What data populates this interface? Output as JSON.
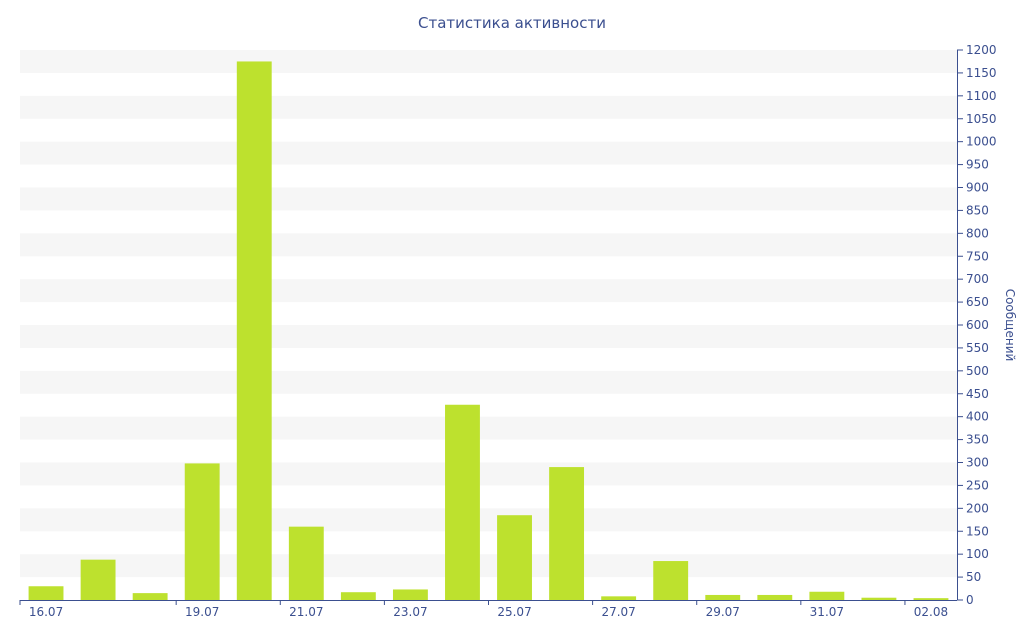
{
  "chart_data": {
    "type": "bar",
    "title": "Статистика активности",
    "ylabel": "Сообщений",
    "y_axis_side": "right",
    "ylim": [
      0,
      1200
    ],
    "y_ticks": [
      0,
      50,
      100,
      150,
      200,
      250,
      300,
      350,
      400,
      450,
      500,
      550,
      600,
      650,
      700,
      750,
      800,
      850,
      900,
      950,
      1000,
      1050,
      1100,
      1150,
      1200
    ],
    "categories": [
      "16.07",
      "17.07",
      "18.07",
      "19.07",
      "20.07",
      "21.07",
      "22.07",
      "23.07",
      "24.07",
      "25.07",
      "26.07",
      "27.07",
      "28.07",
      "29.07",
      "30.07",
      "31.07",
      "01.08",
      "02.08"
    ],
    "x_tick_labels": [
      "16.07",
      "19.07",
      "21.07",
      "23.07",
      "25.07",
      "27.07",
      "29.07",
      "31.07",
      "02.08"
    ],
    "values": [
      30,
      88,
      15,
      298,
      1175,
      160,
      17,
      23,
      426,
      185,
      290,
      8,
      85,
      11,
      11,
      18,
      5,
      4
    ],
    "bar_color": "#bde12e",
    "band_color": "#f6f6f6",
    "text_color": "#3b4f8f",
    "grid": "horizontal bands"
  }
}
